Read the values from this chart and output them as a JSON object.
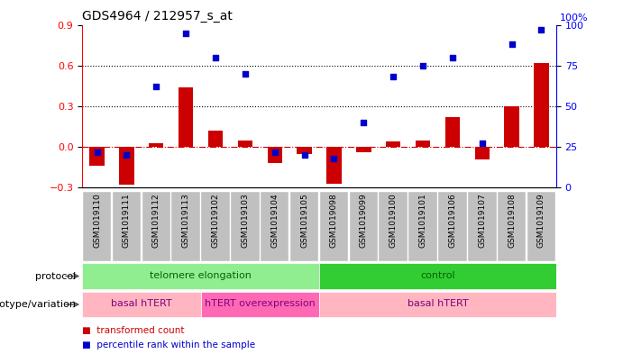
{
  "title": "GDS4964 / 212957_s_at",
  "samples": [
    "GSM1019110",
    "GSM1019111",
    "GSM1019112",
    "GSM1019113",
    "GSM1019102",
    "GSM1019103",
    "GSM1019104",
    "GSM1019105",
    "GSM1019098",
    "GSM1019099",
    "GSM1019100",
    "GSM1019101",
    "GSM1019106",
    "GSM1019107",
    "GSM1019108",
    "GSM1019109"
  ],
  "red_values": [
    -0.14,
    -0.28,
    0.03,
    0.44,
    0.12,
    0.05,
    -0.12,
    -0.05,
    -0.27,
    -0.04,
    0.04,
    0.05,
    0.22,
    -0.09,
    0.3,
    0.62
  ],
  "blue_values": [
    22,
    20,
    62,
    95,
    80,
    70,
    22,
    20,
    18,
    40,
    68,
    75,
    80,
    27,
    88,
    97
  ],
  "protocol_groups": [
    {
      "label": "telomere elongation",
      "start": 0,
      "end": 8,
      "color": "#90EE90"
    },
    {
      "label": "control",
      "start": 8,
      "end": 16,
      "color": "#32CD32"
    }
  ],
  "genotype_groups": [
    {
      "label": "basal hTERT",
      "start": 0,
      "end": 4,
      "color": "#FFB6C1"
    },
    {
      "label": "hTERT overexpression",
      "start": 4,
      "end": 8,
      "color": "#FF69B4"
    },
    {
      "label": "basal hTERT",
      "start": 8,
      "end": 16,
      "color": "#FFB6C1"
    }
  ],
  "ylim_left": [
    -0.3,
    0.9
  ],
  "ylim_right": [
    0,
    100
  ],
  "yticks_left": [
    -0.3,
    0.0,
    0.3,
    0.6,
    0.9
  ],
  "yticks_right": [
    0,
    25,
    50,
    75,
    100
  ],
  "bar_color": "#CC0000",
  "dot_color": "#0000CC",
  "bar_width": 0.5,
  "hline_color": "#CC0000",
  "grid_values": [
    0.3,
    0.6
  ],
  "protocol_label_color": "#006400",
  "genotype_label_color": "#800080",
  "tick_bg_color": "#C0C0C0"
}
